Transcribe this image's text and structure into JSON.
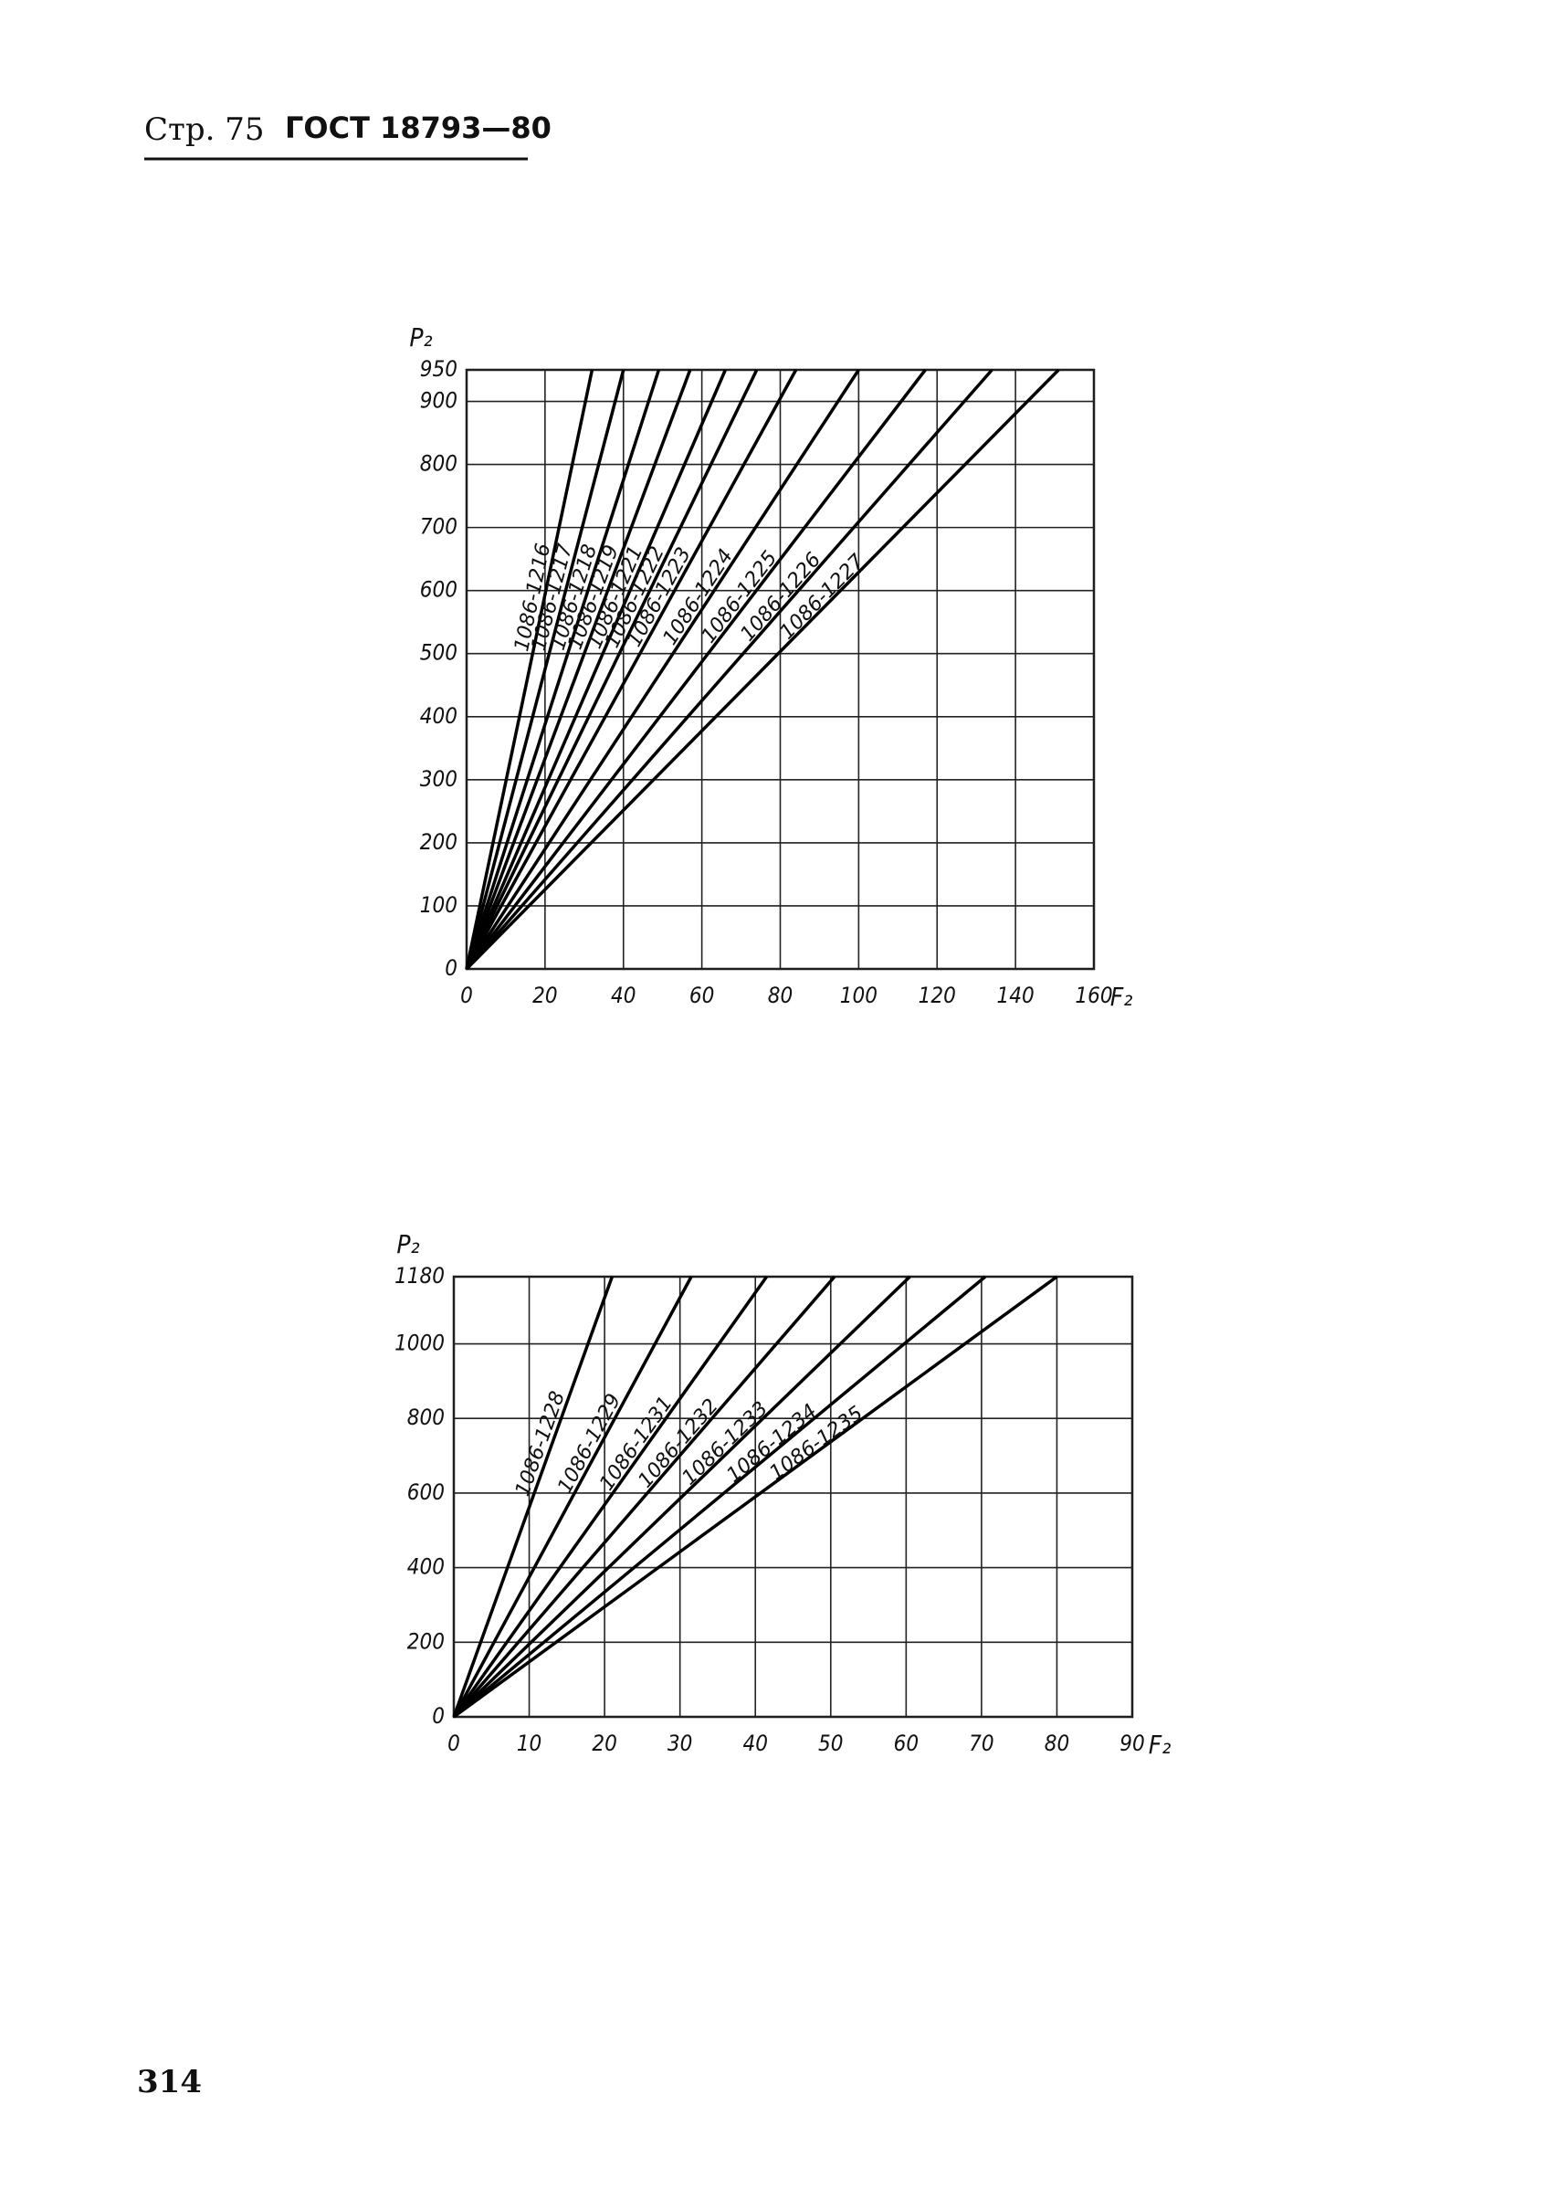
{
  "header": {
    "page": "Стр. 75",
    "standard": "ГОСТ 18793—80"
  },
  "page_number": "314",
  "chart_data": [
    {
      "type": "line",
      "ylabel": "P₂",
      "xlabel": "F₂",
      "xlim": [
        0,
        160
      ],
      "ylim": [
        0,
        950
      ],
      "xticks": [
        0,
        20,
        40,
        60,
        80,
        100,
        120,
        140,
        160
      ],
      "yticks": [
        0,
        100,
        200,
        300,
        400,
        500,
        600,
        700,
        800,
        900,
        950
      ],
      "grid": true,
      "series": [
        {
          "name": "1086-1216",
          "color": "#000000",
          "x": [
            0,
            32
          ],
          "values": [
            0,
            950
          ]
        },
        {
          "name": "1086-1217",
          "color": "#000000",
          "x": [
            0,
            40
          ],
          "values": [
            0,
            950
          ]
        },
        {
          "name": "1086-1218",
          "color": "#000000",
          "x": [
            0,
            49
          ],
          "values": [
            0,
            950
          ]
        },
        {
          "name": "1086-1219",
          "color": "#000000",
          "x": [
            0,
            57
          ],
          "values": [
            0,
            950
          ]
        },
        {
          "name": "1086-1221",
          "color": "#000000",
          "x": [
            0,
            66
          ],
          "values": [
            0,
            950
          ]
        },
        {
          "name": "1086-1222",
          "color": "#000000",
          "x": [
            0,
            74
          ],
          "values": [
            0,
            950
          ]
        },
        {
          "name": "1086-1223",
          "color": "#000000",
          "x": [
            0,
            84
          ],
          "values": [
            0,
            950
          ]
        },
        {
          "name": "1086-1224",
          "color": "#000000",
          "x": [
            0,
            100
          ],
          "values": [
            0,
            950
          ]
        },
        {
          "name": "1086-1225",
          "color": "#000000",
          "x": [
            0,
            117
          ],
          "values": [
            0,
            950
          ]
        },
        {
          "name": "1086-1226",
          "color": "#000000",
          "x": [
            0,
            134
          ],
          "values": [
            0,
            950
          ]
        },
        {
          "name": "1086-1227",
          "color": "#000000",
          "x": [
            0,
            151
          ],
          "values": [
            0,
            950
          ]
        }
      ]
    },
    {
      "type": "line",
      "ylabel": "P₂",
      "xlabel": "F₂",
      "xlim": [
        0,
        90
      ],
      "ylim": [
        0,
        1180
      ],
      "xticks": [
        0,
        10,
        20,
        30,
        40,
        50,
        60,
        70,
        80,
        90
      ],
      "yticks": [
        0,
        200,
        400,
        600,
        800,
        1000,
        1180
      ],
      "grid": true,
      "series": [
        {
          "name": "1086-1228",
          "color": "#000000",
          "x": [
            0,
            21
          ],
          "values": [
            0,
            1180
          ]
        },
        {
          "name": "1086-1229",
          "color": "#000000",
          "x": [
            0,
            31.5
          ],
          "values": [
            0,
            1180
          ]
        },
        {
          "name": "1086-1231",
          "color": "#000000",
          "x": [
            0,
            41.5
          ],
          "values": [
            0,
            1180
          ]
        },
        {
          "name": "1086-1232",
          "color": "#000000",
          "x": [
            0,
            50.5
          ],
          "values": [
            0,
            1180
          ]
        },
        {
          "name": "1086-1233",
          "color": "#000000",
          "x": [
            0,
            60.5
          ],
          "values": [
            0,
            1180
          ]
        },
        {
          "name": "1086-1234",
          "color": "#000000",
          "x": [
            0,
            70.5
          ],
          "values": [
            0,
            1180
          ]
        },
        {
          "name": "1086-1235",
          "color": "#000000",
          "x": [
            0,
            80
          ],
          "values": [
            0,
            1180
          ]
        }
      ]
    }
  ]
}
